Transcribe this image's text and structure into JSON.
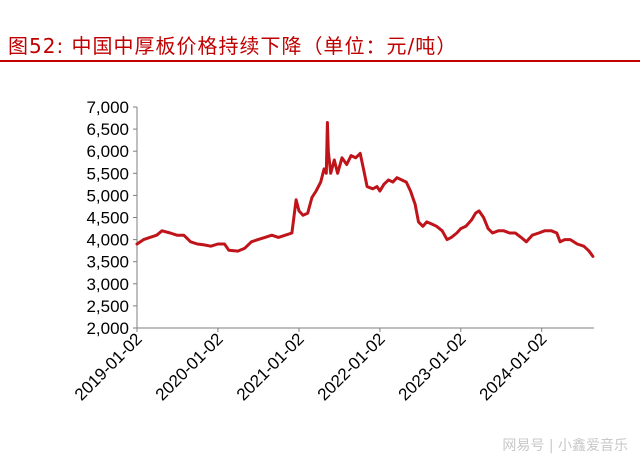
{
  "header": {
    "title": "图52:  中国中厚板价格持续下降（单位：元/吨）"
  },
  "watermark": "网易号 | 小鑫爱音乐",
  "colors": {
    "accent": "#c00000",
    "line": "#c0141b",
    "axis": "#7f7f7f",
    "text": "#000000"
  },
  "chart_data": {
    "type": "line",
    "title": "",
    "xlabel": "",
    "ylabel": "",
    "ylim": [
      2000,
      7000
    ],
    "y_ticks": [
      2000,
      2500,
      3000,
      3500,
      4000,
      4500,
      5000,
      5500,
      6000,
      6500,
      7000
    ],
    "y_tick_labels": [
      "2,000",
      "2,500",
      "3,000",
      "3,500",
      "4,000",
      "4,500",
      "5,000",
      "5,500",
      "6,000",
      "6,500",
      "7,000"
    ],
    "x_tick_labels": [
      "2019-01-02",
      "2020-01-02",
      "2021-01-02",
      "2022-01-02",
      "2023-01-02",
      "2024-01-02"
    ],
    "xlim": [
      "2019-01-02",
      "2024-08-25"
    ],
    "grid": false,
    "legend": "none",
    "series": [
      {
        "name": "",
        "points": [
          [
            "2019-01-02",
            3900
          ],
          [
            "2019-02-01",
            4000
          ],
          [
            "2019-03-01",
            4050
          ],
          [
            "2019-04-01",
            4100
          ],
          [
            "2019-04-25",
            4200
          ],
          [
            "2019-06-01",
            4150
          ],
          [
            "2019-07-01",
            4100
          ],
          [
            "2019-08-01",
            4100
          ],
          [
            "2019-09-01",
            3950
          ],
          [
            "2019-10-01",
            3900
          ],
          [
            "2019-11-01",
            3880
          ],
          [
            "2019-12-01",
            3850
          ],
          [
            "2020-01-02",
            3900
          ],
          [
            "2020-02-01",
            3900
          ],
          [
            "2020-02-20",
            3760
          ],
          [
            "2020-04-01",
            3740
          ],
          [
            "2020-05-01",
            3800
          ],
          [
            "2020-06-01",
            3950
          ],
          [
            "2020-07-01",
            4000
          ],
          [
            "2020-08-01",
            4050
          ],
          [
            "2020-09-01",
            4100
          ],
          [
            "2020-10-01",
            4050
          ],
          [
            "2020-11-01",
            4100
          ],
          [
            "2020-12-01",
            4150
          ],
          [
            "2020-12-20",
            4900
          ],
          [
            "2021-01-02",
            4650
          ],
          [
            "2021-01-20",
            4550
          ],
          [
            "2021-02-10",
            4600
          ],
          [
            "2021-03-01",
            4950
          ],
          [
            "2021-03-20",
            5100
          ],
          [
            "2021-04-10",
            5300
          ],
          [
            "2021-04-25",
            5600
          ],
          [
            "2021-05-05",
            5500
          ],
          [
            "2021-05-10",
            6650
          ],
          [
            "2021-05-14",
            6000
          ],
          [
            "2021-05-25",
            5500
          ],
          [
            "2021-06-10",
            5800
          ],
          [
            "2021-06-25",
            5500
          ],
          [
            "2021-07-15",
            5850
          ],
          [
            "2021-08-05",
            5700
          ],
          [
            "2021-08-25",
            5900
          ],
          [
            "2021-09-15",
            5850
          ],
          [
            "2021-10-05",
            5950
          ],
          [
            "2021-10-20",
            5600
          ],
          [
            "2021-11-05",
            5200
          ],
          [
            "2021-12-01",
            5150
          ],
          [
            "2021-12-20",
            5200
          ],
          [
            "2022-01-02",
            5100
          ],
          [
            "2022-01-20",
            5250
          ],
          [
            "2022-02-10",
            5350
          ],
          [
            "2022-03-01",
            5300
          ],
          [
            "2022-03-20",
            5400
          ],
          [
            "2022-04-10",
            5350
          ],
          [
            "2022-05-01",
            5300
          ],
          [
            "2022-05-20",
            5100
          ],
          [
            "2022-06-10",
            4800
          ],
          [
            "2022-06-25",
            4400
          ],
          [
            "2022-07-15",
            4300
          ],
          [
            "2022-08-01",
            4400
          ],
          [
            "2022-08-25",
            4350
          ],
          [
            "2022-09-15",
            4300
          ],
          [
            "2022-10-10",
            4200
          ],
          [
            "2022-11-01",
            4000
          ],
          [
            "2022-11-20",
            4050
          ],
          [
            "2022-12-15",
            4150
          ],
          [
            "2023-01-02",
            4250
          ],
          [
            "2023-01-25",
            4300
          ],
          [
            "2023-02-20",
            4450
          ],
          [
            "2023-03-10",
            4600
          ],
          [
            "2023-03-25",
            4650
          ],
          [
            "2023-04-15",
            4500
          ],
          [
            "2023-05-05",
            4250
          ],
          [
            "2023-05-25",
            4150
          ],
          [
            "2023-06-20",
            4200
          ],
          [
            "2023-07-15",
            4200
          ],
          [
            "2023-08-10",
            4150
          ],
          [
            "2023-09-05",
            4150
          ],
          [
            "2023-10-01",
            4050
          ],
          [
            "2023-10-25",
            3950
          ],
          [
            "2023-11-20",
            4100
          ],
          [
            "2023-12-20",
            4150
          ],
          [
            "2024-01-15",
            4200
          ],
          [
            "2024-02-15",
            4200
          ],
          [
            "2024-03-10",
            4150
          ],
          [
            "2024-03-25",
            3950
          ],
          [
            "2024-04-15",
            4000
          ],
          [
            "2024-05-10",
            4000
          ],
          [
            "2024-06-10",
            3900
          ],
          [
            "2024-07-10",
            3850
          ],
          [
            "2024-08-01",
            3750
          ],
          [
            "2024-08-20",
            3620
          ]
        ]
      }
    ]
  }
}
